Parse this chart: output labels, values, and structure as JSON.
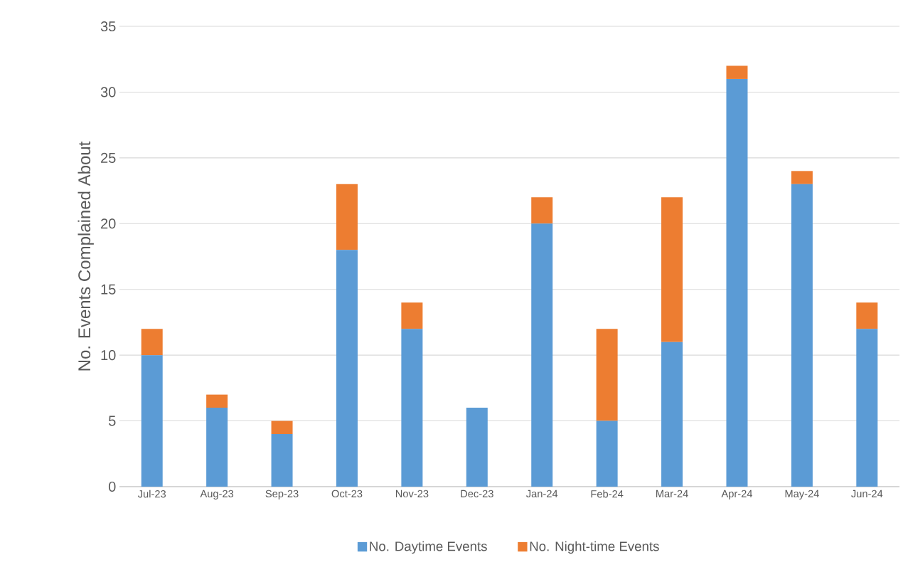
{
  "chart_data": {
    "type": "bar",
    "stacked": true,
    "ylabel": "No. Events Complained About",
    "categories": [
      "Jul-23",
      "Aug-23",
      "Sep-23",
      "Oct-23",
      "Nov-23",
      "Dec-23",
      "Jan-24",
      "Feb-24",
      "Mar-24",
      "Apr-24",
      "May-24",
      "Jun-24"
    ],
    "series": [
      {
        "name": "No. Daytime Events",
        "color": "#5b9bd5",
        "values": [
          10,
          6,
          4,
          18,
          12,
          6,
          20,
          5,
          11,
          31,
          23,
          12
        ]
      },
      {
        "name": "No. Night-time Events",
        "color": "#ed7d31",
        "values": [
          2,
          1,
          1,
          5,
          2,
          0,
          2,
          7,
          11,
          1,
          1,
          2
        ]
      }
    ],
    "ylim": [
      0,
      35
    ],
    "yticks": [
      0,
      5,
      10,
      15,
      20,
      25,
      30,
      35
    ],
    "grid": "y",
    "legend": "bottom"
  }
}
